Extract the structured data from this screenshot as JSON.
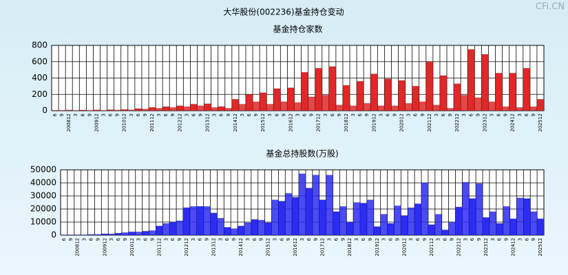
{
  "title": "大华股份(002236)基金持仓变动",
  "watermark": "CFi.CN",
  "chart_data": [
    {
      "type": "bar",
      "title": "基金持仓家数",
      "color": "#e02828",
      "grid": true,
      "categories": [
        "6",
        "9",
        "200812",
        "3",
        "6",
        "9",
        "200912",
        "3",
        "6",
        "9",
        "201012",
        "3",
        "6",
        "9",
        "201112",
        "3",
        "6",
        "9",
        "201212",
        "3",
        "6",
        "9",
        "201312",
        "3",
        "6",
        "9",
        "201412",
        "3",
        "6",
        "9",
        "201512",
        "3",
        "6",
        "9",
        "201612",
        "3",
        "6",
        "9",
        "201712",
        "3",
        "6",
        "9",
        "201812",
        "3",
        "6",
        "9",
        "201912",
        "3",
        "6",
        "9",
        "202012",
        "3",
        "6",
        "9",
        "202112",
        "3",
        "6",
        "9",
        "202212",
        "3",
        "6",
        "9",
        "202312",
        "3",
        "6",
        "9",
        "202412",
        "3",
        "6",
        "9",
        "202512"
      ],
      "values": [
        5,
        5,
        8,
        3,
        8,
        5,
        10,
        5,
        12,
        8,
        15,
        10,
        25,
        20,
        40,
        30,
        50,
        40,
        60,
        50,
        80,
        60,
        85,
        40,
        50,
        30,
        140,
        80,
        200,
        110,
        220,
        80,
        270,
        110,
        280,
        100,
        470,
        170,
        520,
        190,
        540,
        70,
        310,
        60,
        360,
        90,
        450,
        60,
        390,
        60,
        370,
        90,
        300,
        110,
        600,
        70,
        430,
        30,
        330,
        190,
        750,
        160,
        690,
        110,
        460,
        50,
        460,
        40,
        520,
        50,
        140
      ],
      "ylim": [
        0,
        800
      ],
      "yticks": [
        0,
        200,
        400,
        600,
        800
      ]
    },
    {
      "type": "bar",
      "title": "基金总持股数(万股)",
      "color": "#2c2cf5",
      "grid": true,
      "categories": [
        "6",
        "9",
        "200812",
        "3",
        "6",
        "9",
        "200912",
        "3",
        "6",
        "9",
        "201012",
        "3",
        "6",
        "9",
        "201112",
        "3",
        "6",
        "9",
        "201212",
        "3",
        "6",
        "9",
        "201312",
        "3",
        "6",
        "9",
        "201412",
        "3",
        "6",
        "9",
        "201512",
        "3",
        "6",
        "9",
        "201612",
        "3",
        "6",
        "9",
        "201712",
        "3",
        "6",
        "9",
        "201812",
        "3",
        "6",
        "9",
        "201912",
        "3",
        "6",
        "9",
        "202012",
        "3",
        "6",
        "9",
        "202112",
        "3",
        "6",
        "9",
        "202212",
        "3",
        "6",
        "9",
        "202312",
        "3",
        "6",
        "9",
        "202412",
        "3",
        "6",
        "9",
        "202512"
      ],
      "values": [
        200,
        200,
        300,
        300,
        500,
        600,
        1000,
        1000,
        1500,
        2000,
        2500,
        2500,
        3000,
        3500,
        7000,
        9000,
        10000,
        11000,
        21000,
        22000,
        22000,
        22000,
        17000,
        13000,
        6000,
        5000,
        7000,
        9500,
        12000,
        11500,
        9500,
        27000,
        26000,
        32000,
        29000,
        47000,
        36000,
        46000,
        27000,
        46000,
        18000,
        22000,
        10000,
        25000,
        24500,
        27000,
        6500,
        16000,
        9000,
        22500,
        15000,
        21000,
        24000,
        40000,
        8000,
        16000,
        4000,
        10000,
        21500,
        40500,
        28000,
        39500,
        13500,
        18000,
        9000,
        22000,
        12500,
        28500,
        28000,
        18000,
        12500
      ],
      "ylim": [
        0,
        50000
      ],
      "yticks": [
        0,
        10000,
        20000,
        30000,
        40000,
        50000
      ]
    }
  ]
}
